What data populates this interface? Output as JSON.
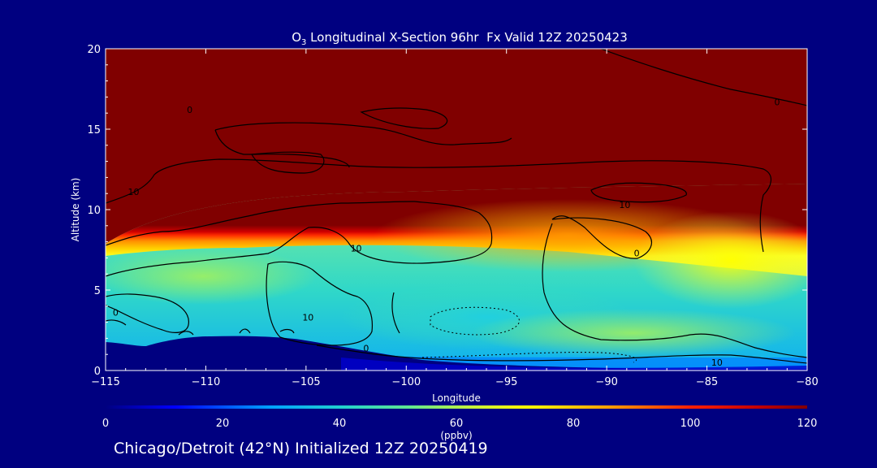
{
  "chart_data": {
    "type": "heatmap",
    "title_prefix": "O",
    "title_subscript": "3",
    "title_rest": " Longitudinal X-Section 96hr  Fx Valid 12Z 20250423",
    "xlabel": "Longitude",
    "ylabel": "Altitude (km)",
    "xlim": [
      -115,
      -80
    ],
    "ylim": [
      0,
      20
    ],
    "x_ticks": [
      -115,
      -110,
      -105,
      -100,
      -95,
      -90,
      -85,
      -80
    ],
    "x_tick_labels": [
      "−115",
      "−110",
      "−105",
      "−100",
      "−95",
      "−90",
      "−85",
      "−80"
    ],
    "y_ticks": [
      0,
      5,
      10,
      15,
      20
    ],
    "y_tick_labels": [
      "0",
      "5",
      "10",
      "15",
      "20"
    ],
    "colorbar": {
      "label": "(ppbv)",
      "range": [
        0,
        120
      ],
      "ticks": [
        0,
        20,
        40,
        60,
        80,
        100,
        120
      ],
      "tick_labels": [
        "0",
        "20",
        "40",
        "60",
        "80",
        "100",
        "120"
      ],
      "stops": [
        {
          "value": 0,
          "color": "#000080"
        },
        {
          "value": 12,
          "color": "#0000ff"
        },
        {
          "value": 28,
          "color": "#00a0ff"
        },
        {
          "value": 40,
          "color": "#20d0d0"
        },
        {
          "value": 52,
          "color": "#60e890"
        },
        {
          "value": 62,
          "color": "#c0f040"
        },
        {
          "value": 72,
          "color": "#ffff00"
        },
        {
          "value": 86,
          "color": "#ffa000"
        },
        {
          "value": 100,
          "color": "#ff2000"
        },
        {
          "value": 112,
          "color": "#c00000"
        },
        {
          "value": 120,
          "color": "#800000"
        }
      ]
    },
    "contour_labels": [
      {
        "text": "0",
        "lon": -110.8,
        "alt": 16.2
      },
      {
        "text": "0",
        "lon": -81.5,
        "alt": 16.7
      },
      {
        "text": "10",
        "lon": -113.6,
        "alt": 11.1
      },
      {
        "text": "10",
        "lon": -89.1,
        "alt": 10.3
      },
      {
        "text": "10",
        "lon": -102.5,
        "alt": 7.6
      },
      {
        "text": "0",
        "lon": -88.5,
        "alt": 7.3
      },
      {
        "text": "0",
        "lon": -114.5,
        "alt": 3.6
      },
      {
        "text": "10",
        "lon": -104.9,
        "alt": 3.3
      },
      {
        "text": "0",
        "lon": -102.0,
        "alt": 1.4
      },
      {
        "text": "10",
        "lon": -84.5,
        "alt": 0.5
      }
    ]
  },
  "caption": "Chicago/Detroit (42°N) Initialized 12Z 20250419"
}
